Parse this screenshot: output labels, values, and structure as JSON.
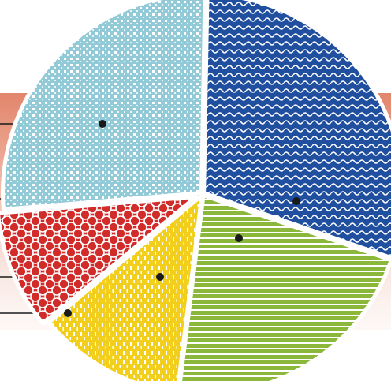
{
  "chart_data": {
    "type": "pie",
    "title": "",
    "legend": "none",
    "grid": false,
    "slices": [
      {
        "value": 30.0,
        "color": "#1F4F9E",
        "pattern": "wave"
      },
      {
        "value": 21.7,
        "color": "#8BB83A",
        "pattern": "horizontal-stripes"
      },
      {
        "value": 12.0,
        "color": "#F2CF1C",
        "pattern": "dashes"
      },
      {
        "value": 9.7,
        "color": "#D12B2A",
        "pattern": "circles"
      },
      {
        "value": 26.6,
        "color": "#92CBD7",
        "pattern": "dots"
      }
    ]
  },
  "background": {
    "band_colors": [
      "#E2866C",
      "#F6DED4"
    ]
  }
}
